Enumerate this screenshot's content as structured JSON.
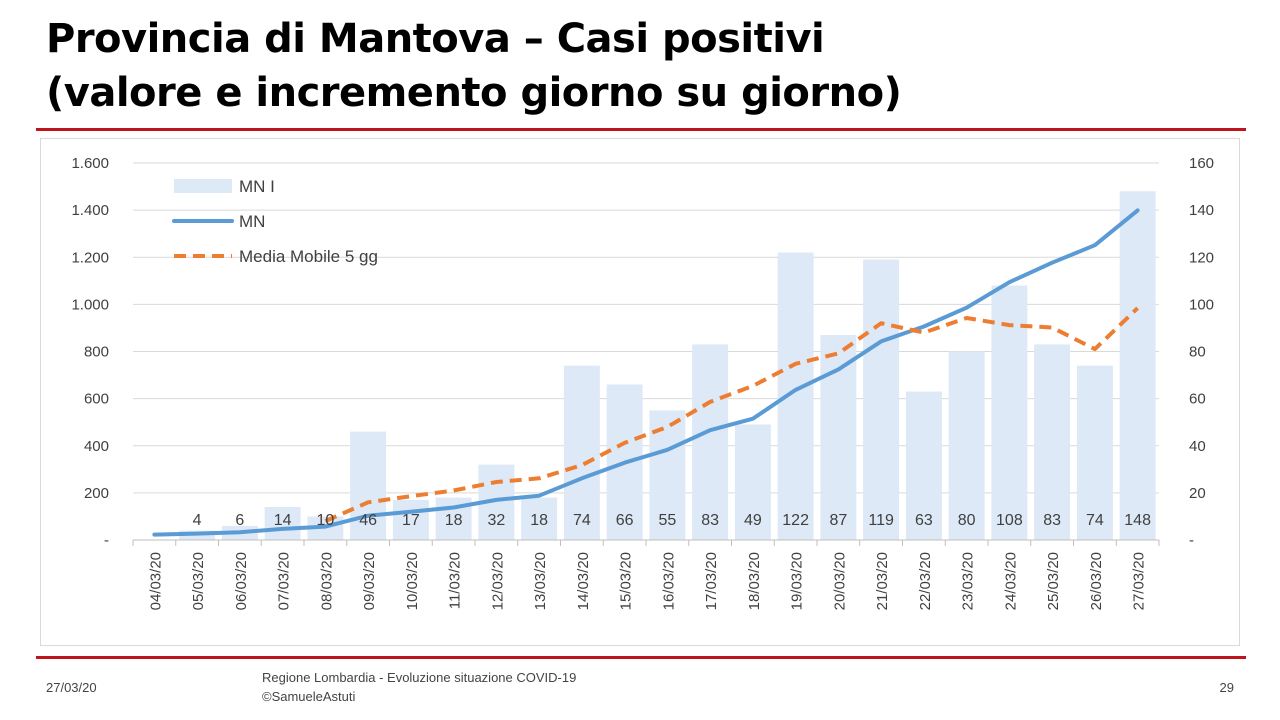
{
  "slide": {
    "title_line1": "Provincia di Mantova – Casi positivi",
    "title_line2": "(valore e incremento giorno su giorno)",
    "footer_date": "27/03/20",
    "footer_source_line1": "Regione Lombardia - Evoluzione situazione COVID-19",
    "footer_source_line2": "©SamueleAstuti",
    "page_number": "29"
  },
  "colors": {
    "bar": "#dde9f6",
    "line": "#5b9bd5",
    "moving_average": "#ed7d31",
    "accent_rule": "#c0141c",
    "grid": "#d9d9d9"
  },
  "chart_data": {
    "type": "bar+line",
    "title": "",
    "categories": [
      "04/03/20",
      "05/03/20",
      "06/03/20",
      "07/03/20",
      "08/03/20",
      "09/03/20",
      "10/03/20",
      "11/03/20",
      "12/03/20",
      "13/03/20",
      "14/03/20",
      "15/03/20",
      "16/03/20",
      "17/03/20",
      "18/03/20",
      "19/03/20",
      "20/03/20",
      "21/03/20",
      "22/03/20",
      "23/03/20",
      "24/03/20",
      "25/03/20",
      "26/03/20",
      "27/03/20"
    ],
    "y_left": {
      "range": [
        0,
        1600
      ],
      "ticks": [
        "-",
        "200",
        "400",
        "600",
        "800",
        "1.000",
        "1.200",
        "1.400",
        "1.600"
      ]
    },
    "y_right": {
      "range": [
        0,
        160
      ],
      "ticks": [
        "-",
        "20",
        "40",
        "60",
        "80",
        "100",
        "120",
        "140",
        "160"
      ]
    },
    "grid": true,
    "legend_position": "top-left",
    "series": [
      {
        "name": "MN I",
        "type": "bar",
        "axis": "right",
        "values": [
          null,
          4,
          6,
          14,
          10,
          46,
          17,
          18,
          32,
          18,
          74,
          66,
          55,
          83,
          49,
          122,
          87,
          119,
          63,
          80,
          108,
          83,
          74,
          148
        ],
        "data_labels": [
          "",
          "4",
          "6",
          "14",
          "10",
          "46",
          "17",
          "18",
          "32",
          "18",
          "74",
          "66",
          "55",
          "83",
          "49",
          "122",
          "87",
          "119",
          "63",
          "80",
          "108",
          "83",
          "74",
          "148"
        ]
      },
      {
        "name": "MN",
        "type": "line",
        "axis": "left",
        "values": [
          23,
          27,
          33,
          47,
          57,
          103,
          120,
          138,
          170,
          188,
          262,
          328,
          383,
          466,
          515,
          637,
          724,
          843,
          906,
          986,
          1094,
          1177,
          1251,
          1399
        ]
      },
      {
        "name": "Media Mobile 5 gg",
        "type": "line-dashed",
        "axis": "left",
        "values": [
          null,
          null,
          null,
          null,
          80,
          160,
          186,
          210,
          246,
          262,
          318,
          412,
          480,
          586,
          654,
          748,
          792,
          920,
          880,
          942,
          912,
          902,
          810,
          984
        ]
      }
    ]
  }
}
